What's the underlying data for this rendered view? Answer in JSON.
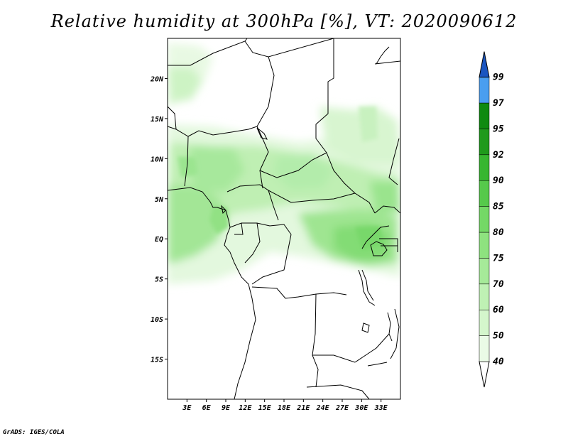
{
  "title": "Relative humidity at 300hPa [%], VT: 2020090612",
  "credit": "GrADS: IGES/COLA",
  "map": {
    "variable": "Relative humidity",
    "level": "300hPa",
    "units": "%",
    "valid_time": "2020090612",
    "lon_range": [
      0,
      36
    ],
    "lat_range": [
      -20,
      25
    ],
    "lon_ticks": [
      {
        "value": 3,
        "label": "3E"
      },
      {
        "value": 6,
        "label": "6E"
      },
      {
        "value": 9,
        "label": "9E"
      },
      {
        "value": 12,
        "label": "12E"
      },
      {
        "value": 15,
        "label": "15E"
      },
      {
        "value": 18,
        "label": "18E"
      },
      {
        "value": 21,
        "label": "21E"
      },
      {
        "value": 24,
        "label": "24E"
      },
      {
        "value": 27,
        "label": "27E"
      },
      {
        "value": 30,
        "label": "30E"
      },
      {
        "value": 33,
        "label": "33E"
      }
    ],
    "lat_ticks": [
      {
        "value": 20,
        "label": "20N"
      },
      {
        "value": 15,
        "label": "15N"
      },
      {
        "value": 10,
        "label": "10N"
      },
      {
        "value": 5,
        "label": "5N"
      },
      {
        "value": 0,
        "label": "EQ"
      },
      {
        "value": -5,
        "label": "5S"
      },
      {
        "value": -10,
        "label": "10S"
      },
      {
        "value": -15,
        "label": "15S"
      }
    ]
  },
  "colorbar": {
    "levels": [
      {
        "label": "40",
        "color": "#eafbe6"
      },
      {
        "label": "50",
        "color": "#d4f6cc"
      },
      {
        "label": "60",
        "color": "#bff1b4"
      },
      {
        "label": "70",
        "color": "#a6ea99"
      },
      {
        "label": "75",
        "color": "#8ee27f"
      },
      {
        "label": "80",
        "color": "#74d866"
      },
      {
        "label": "85",
        "color": "#56c94b"
      },
      {
        "label": "90",
        "color": "#37b630"
      },
      {
        "label": "92",
        "color": "#1f9a1c"
      },
      {
        "label": "95",
        "color": "#0f8a10"
      },
      {
        "label": "97",
        "color": "#4a9ef0"
      },
      {
        "label": "99",
        "color": "#2a72d8"
      }
    ],
    "top_color": "#1a55c0"
  }
}
